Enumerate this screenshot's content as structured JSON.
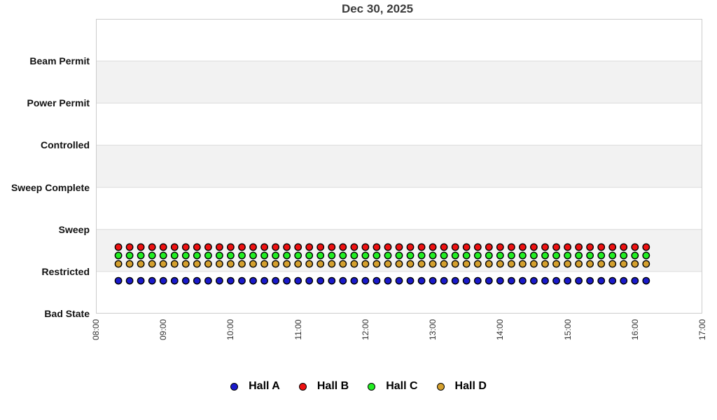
{
  "chart_data": {
    "type": "scatter",
    "title": "Dec 30, 2025",
    "x_axis": {
      "start": "08:00",
      "end": "17:00",
      "tick_labels": [
        "08:00",
        "09:00",
        "10:00",
        "11:00",
        "12:00",
        "13:00",
        "14:00",
        "15:00",
        "16:00",
        "17:00"
      ],
      "tick_label_rotation_degrees": -90
    },
    "y_axis": {
      "categories_bottom_to_top": [
        "Bad State",
        "Restricted",
        "Sweep",
        "Sweep Complete",
        "Controlled",
        "Power Permit",
        "Beam Permit"
      ]
    },
    "grid": "alternating-horizontal-bands",
    "band_colors": {
      "light": "#ffffff",
      "shaded": "#f2f2f2"
    },
    "gridline_color": "#dcdcdc",
    "plot_border_color": "#cccccc",
    "sample_times": [
      "08:20",
      "08:30",
      "08:40",
      "08:50",
      "09:00",
      "09:10",
      "09:20",
      "09:30",
      "09:40",
      "09:50",
      "10:00",
      "10:10",
      "10:20",
      "10:30",
      "10:40",
      "10:50",
      "11:00",
      "11:10",
      "11:20",
      "11:30",
      "11:40",
      "11:50",
      "12:00",
      "12:10",
      "12:20",
      "12:30",
      "12:40",
      "12:50",
      "13:00",
      "13:10",
      "13:20",
      "13:30",
      "13:40",
      "13:50",
      "14:00",
      "14:10",
      "14:20",
      "14:30",
      "14:40",
      "14:50",
      "15:00",
      "15:10",
      "15:20",
      "15:30",
      "15:40",
      "15:50",
      "16:00",
      "16:10"
    ],
    "series": [
      {
        "name": "Hall A",
        "color": "#1a1acc",
        "state_all_samples": "Restricted",
        "dot_row_offset_bands": -0.22
      },
      {
        "name": "Hall B",
        "color": "#ee1111",
        "state_all_samples": "Restricted",
        "dot_row_offset_bands": 0.58
      },
      {
        "name": "Hall C",
        "color": "#22ee22",
        "state_all_samples": "Restricted",
        "dot_row_offset_bands": 0.38
      },
      {
        "name": "Hall D",
        "color": "#d4a02e",
        "state_all_samples": "Restricted",
        "dot_row_offset_bands": 0.18
      }
    ],
    "legend": {
      "position": "bottom",
      "labels": [
        "Hall A",
        "Hall B",
        "Hall C",
        "Hall D"
      ]
    }
  }
}
